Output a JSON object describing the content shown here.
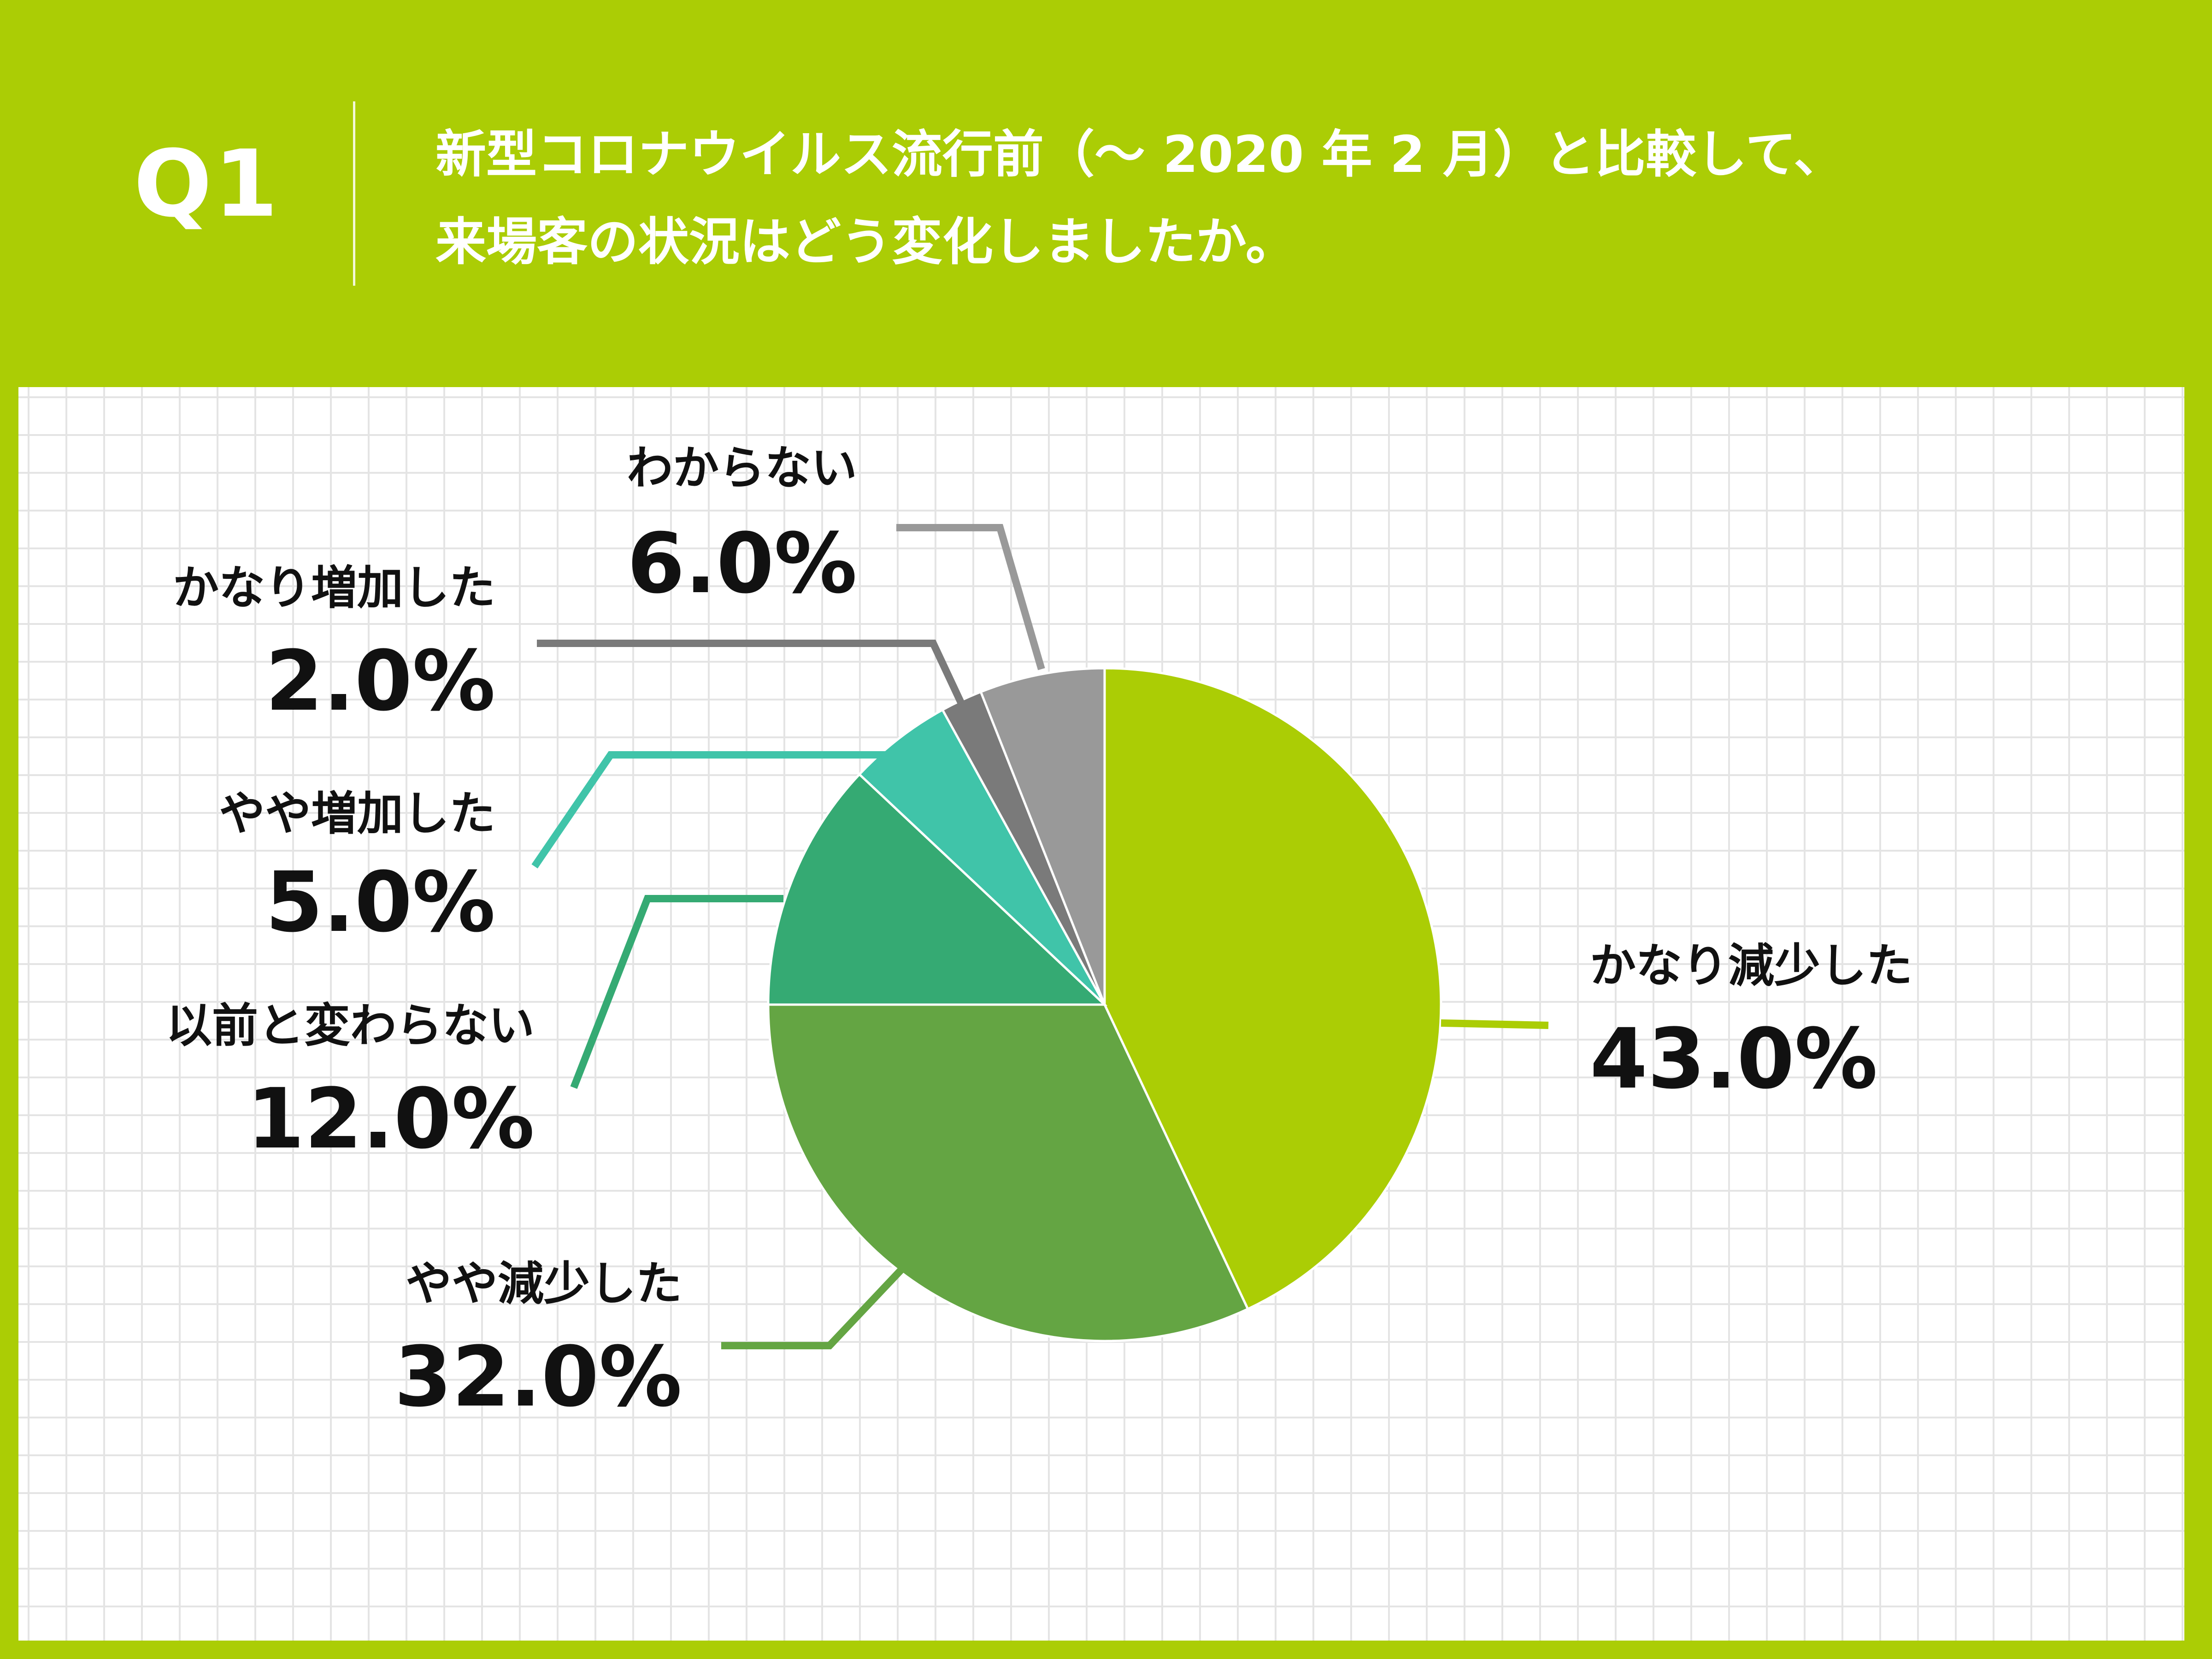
{
  "header": {
    "q_label": "Q1",
    "question_line1": "新型コロナウイルス流行前（～ 2020 年 2 月）と比較して、",
    "question_line2": "来場客の状況はどう変化しましたか。"
  },
  "colors": {
    "background": "#abcd05",
    "grid": "#e4e4e4"
  },
  "chart_data": {
    "type": "pie",
    "start": "12 o'clock",
    "direction": "clockwise",
    "slices": [
      {
        "label": "かなり減少した",
        "value": 43.0,
        "value_label": "43.0%",
        "color": "#abcd05"
      },
      {
        "label": "やや減少した",
        "value": 32.0,
        "value_label": "32.0%",
        "color": "#64a543"
      },
      {
        "label": "以前と変わらない",
        "value": 12.0,
        "value_label": "12.0%",
        "color": "#35aa73"
      },
      {
        "label": "やや増加した",
        "value": 5.0,
        "value_label": "5.0%",
        "color": "#40c4a9"
      },
      {
        "label": "かなり増加した",
        "value": 2.0,
        "value_label": "2.0%",
        "color": "#7a7a7a"
      },
      {
        "label": "わからない",
        "value": 6.0,
        "value_label": "6.0%",
        "color": "#999999"
      }
    ]
  }
}
